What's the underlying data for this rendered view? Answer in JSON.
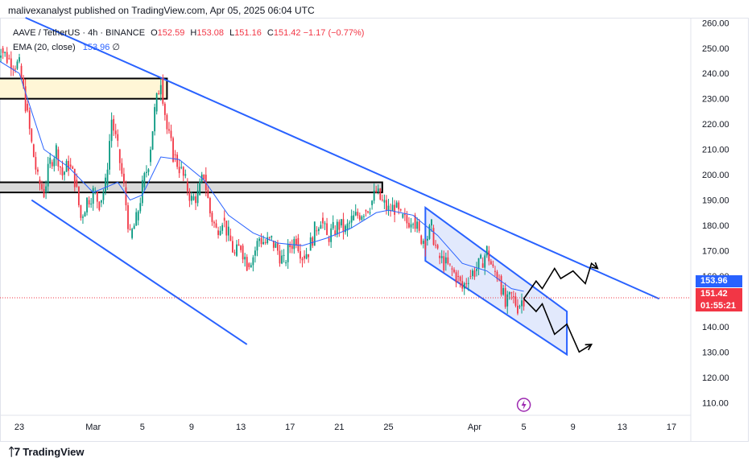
{
  "header": {
    "publisher_line": "malivexanalyst published on TradingView.com, Apr 05, 2025 06:04 UTC"
  },
  "legend": {
    "symbol": "AAVE / TetherUS · 4h · BINANCE",
    "open_label": "O",
    "open": "152.59",
    "high_label": "H",
    "high": "153.08",
    "low_label": "L",
    "low": "151.16",
    "close_label": "C",
    "close": "151.42",
    "change": "−1.17 (−0.77%)",
    "ema_label": "EMA (20, close)",
    "ema_value": "153.96",
    "ema_extra": "∅"
  },
  "price_tags": {
    "ema": "153.96",
    "last": "151.42",
    "countdown": "01:55:21"
  },
  "footer": {
    "brand": "TradingView"
  },
  "colors": {
    "up": "#089981",
    "down": "#f23645",
    "ema": "#2962ff",
    "trendline": "#2962ff",
    "channel_fill": "#dbe3fb",
    "supply_zone": "#fff6d6",
    "support_zone": "#d9d9d9"
  },
  "chart_data": {
    "type": "candlestick",
    "ylim": [
      105,
      262
    ],
    "y_ticks": [
      "260.00",
      "250.00",
      "240.00",
      "230.00",
      "220.00",
      "210.00",
      "200.00",
      "190.00",
      "180.00",
      "170.00",
      "160.00",
      "150.00",
      "140.00",
      "130.00",
      "120.00",
      "110.00"
    ],
    "x_ticks": [
      "23",
      "Mar",
      "5",
      "9",
      "13",
      "17",
      "21",
      "25",
      "Apr",
      "5",
      "9",
      "13",
      "17"
    ],
    "series": [
      {
        "name": "",
        "close_path": [
          [
            "Feb 21",
            244
          ],
          [
            "Feb 21.5",
            250
          ],
          [
            "Feb 22",
            246
          ],
          [
            "Feb 23",
            243
          ],
          [
            "Feb 23.5",
            228
          ],
          [
            "Feb 24",
            212
          ],
          [
            "Feb 24.5",
            198
          ],
          [
            "Feb 25",
            193
          ],
          [
            "Feb 25.5",
            205
          ],
          [
            "Feb 26",
            210
          ],
          [
            "Feb 26.5",
            200
          ],
          [
            "Feb 27",
            204
          ],
          [
            "Feb 27.5",
            198
          ],
          [
            "Feb 28",
            183
          ],
          [
            "Feb 28.5",
            190
          ],
          [
            "Mar 1",
            193
          ],
          [
            "Mar 1.5",
            189
          ],
          [
            "Mar 2",
            196
          ],
          [
            "Mar 2.5",
            222
          ],
          [
            "Mar 3",
            210
          ],
          [
            "Mar 3.5",
            195
          ],
          [
            "Mar 4",
            175
          ],
          [
            "Mar 4.5",
            182
          ],
          [
            "Mar 5",
            195
          ],
          [
            "Mar 5.5",
            205
          ],
          [
            "Mar 6",
            225
          ],
          [
            "Mar 6.5",
            238
          ],
          [
            "Mar 7",
            218
          ],
          [
            "Mar 7.5",
            208
          ],
          [
            "Mar 8",
            203
          ],
          [
            "Mar 8.5",
            197
          ],
          [
            "Mar 9",
            190
          ],
          [
            "Mar 9.5",
            192
          ],
          [
            "Mar 10",
            200
          ],
          [
            "Mar 10.5",
            185
          ],
          [
            "Mar 11",
            178
          ],
          [
            "Mar 11.5",
            183
          ],
          [
            "Mar 12",
            176
          ],
          [
            "Mar 12.5",
            168
          ],
          [
            "Mar 13",
            172
          ],
          [
            "Mar 13.5",
            165
          ],
          [
            "Mar 14",
            168
          ],
          [
            "Mar 14.5",
            175
          ],
          [
            "Mar 15",
            173
          ],
          [
            "Mar 15.5",
            174
          ],
          [
            "Mar 16",
            170
          ],
          [
            "Mar 16.5",
            165
          ],
          [
            "Mar 17",
            172
          ],
          [
            "Mar 17.5",
            175
          ],
          [
            "Mar 18",
            168
          ],
          [
            "Mar 18.5",
            170
          ],
          [
            "Mar 19",
            178
          ],
          [
            "Mar 19.5",
            183
          ],
          [
            "Mar 20",
            175
          ],
          [
            "Mar 20.5",
            178
          ],
          [
            "Mar 21",
            180
          ],
          [
            "Mar 21.5",
            178
          ],
          [
            "Mar 22",
            182
          ],
          [
            "Mar 22.5",
            184
          ],
          [
            "Mar 23",
            186
          ],
          [
            "Mar 23.5",
            188
          ],
          [
            "Mar 24",
            193
          ],
          [
            "Mar 24.5",
            189
          ],
          [
            "Mar 25",
            186
          ],
          [
            "Mar 25.5",
            187
          ],
          [
            "Mar 26",
            183
          ],
          [
            "Mar 26.5",
            181
          ],
          [
            "Mar 27",
            184
          ],
          [
            "Mar 27.5",
            176
          ],
          [
            "Mar 28",
            174
          ],
          [
            "Mar 28.5",
            179
          ],
          [
            "Mar 29",
            168
          ],
          [
            "Mar 29.5",
            165
          ],
          [
            "Mar 30",
            163
          ],
          [
            "Mar 30.5",
            160
          ],
          [
            "Mar 31",
            155
          ],
          [
            "Mar 31.5",
            160
          ],
          [
            "Apr 1",
            162
          ],
          [
            "Apr 1.5",
            165
          ],
          [
            "Apr 2",
            170
          ],
          [
            "Apr 2.5",
            162
          ],
          [
            "Apr 3",
            160
          ],
          [
            "Apr 3.5",
            148
          ],
          [
            "Apr 4",
            152
          ],
          [
            "Apr 4.5",
            148
          ],
          [
            "Apr 5",
            151.42
          ]
        ]
      }
    ],
    "ema20_path": [
      [
        "Feb 21",
        246
      ],
      [
        "Feb 23",
        240
      ],
      [
        "Feb 24",
        225
      ],
      [
        "Feb 25",
        210
      ],
      [
        "Feb 27",
        203
      ],
      [
        "Mar 1",
        193
      ],
      [
        "Mar 3",
        197
      ],
      [
        "Mar 4",
        190
      ],
      [
        "Mar 5",
        192
      ],
      [
        "Mar 6.5",
        207
      ],
      [
        "Mar 8",
        206
      ],
      [
        "Mar 10",
        198
      ],
      [
        "Mar 12",
        184
      ],
      [
        "Mar 14",
        177
      ],
      [
        "Mar 16",
        173
      ],
      [
        "Mar 18",
        172
      ],
      [
        "Mar 20",
        175
      ],
      [
        "Mar 22",
        179
      ],
      [
        "Mar 24",
        185
      ],
      [
        "Mar 25",
        186
      ],
      [
        "Mar 27",
        184
      ],
      [
        "Mar 29",
        176
      ],
      [
        "Mar 31",
        165
      ],
      [
        "Apr 2",
        162
      ],
      [
        "Apr 4",
        155
      ],
      [
        "Apr 5",
        153.96
      ]
    ],
    "zones": [
      {
        "name": "supply-zone",
        "from": "Feb 21",
        "to": "Mar 7",
        "low": 230,
        "high": 238
      },
      {
        "name": "support-zone",
        "from": "Feb 21",
        "to": "Mar 24.5",
        "low": 193,
        "high": 197
      }
    ],
    "trendlines": [
      {
        "name": "upper-trendline",
        "points": [
          [
            "Feb 23.5",
            262
          ],
          [
            "Apr 16",
            151
          ]
        ]
      },
      {
        "name": "lower-trendline",
        "points": [
          [
            "Feb 24",
            190
          ],
          [
            "Mar 13.5",
            133
          ]
        ]
      }
    ],
    "descending_channel": {
      "top": [
        [
          "Mar 28",
          187
        ],
        [
          "Apr 8.5",
          146
        ]
      ],
      "bottom": [
        [
          "Mar 28",
          166
        ],
        [
          "Apr 8.5",
          129
        ]
      ]
    },
    "projection_up": [
      [
        "Apr 5",
        151
      ],
      [
        "Apr 6",
        158
      ],
      [
        "Apr 6.5",
        155
      ],
      [
        "Apr 7.5",
        163
      ],
      [
        "Apr 8",
        159
      ],
      [
        "Apr 9",
        162
      ],
      [
        "Apr 10",
        157
      ],
      [
        "Apr 10.5",
        165
      ],
      [
        "Apr 11",
        163
      ]
    ],
    "projection_down": [
      [
        "Apr 5",
        151
      ],
      [
        "Apr 6",
        146
      ],
      [
        "Apr 6.5",
        149
      ],
      [
        "Apr 7.5",
        137
      ],
      [
        "Apr 8.5",
        141
      ],
      [
        "Apr 9.5",
        130
      ],
      [
        "Apr 10.5",
        133
      ]
    ]
  }
}
